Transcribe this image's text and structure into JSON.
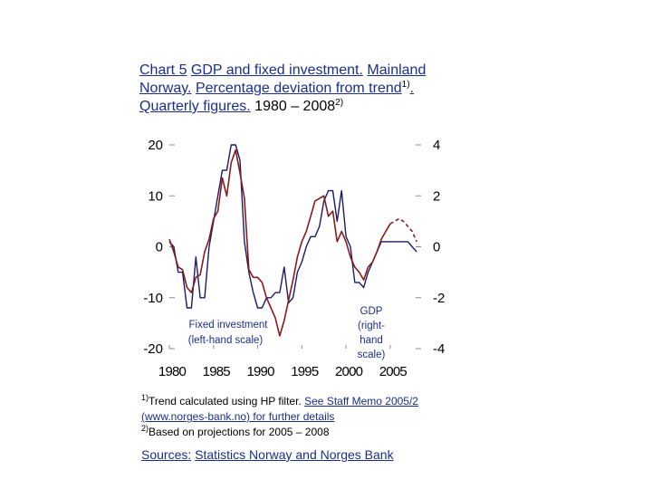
{
  "title": {
    "chart_no": "Chart 5",
    "part1": "GDP and fixed investment.",
    "part2": "Mainland Norway.",
    "part3": "Percentage deviation from trend",
    "sup1": "1)",
    "sep1": ".",
    "part4": "Quarterly figures.",
    "period": "1980 – 2008",
    "sup2": "2)"
  },
  "footnotes": {
    "f1_mark": "1)",
    "f1_text": "Trend calculated using HP filter.",
    "f1_link": "See Staff Memo 2005/2 (www.norges-bank.no) for further details",
    "f2_mark": "2)",
    "f2_text": "Based on projections for 2005 – 2008"
  },
  "sources": {
    "label": "Sources:",
    "text": "Statistics Norway and Norges Bank"
  },
  "colors": {
    "investment": "#1a1a6e",
    "gdp": "#8b1a1a",
    "axis": "#000000",
    "annotation": "#1a2f8c"
  },
  "chart_data": {
    "type": "line",
    "x_ticks": [
      "1980",
      "1985",
      "1990",
      "1995",
      "2000",
      "2005"
    ],
    "xlim": [
      1980,
      2008.5
    ],
    "ylim_left": [
      -20,
      20
    ],
    "ylim_right": [
      -4,
      4
    ],
    "left_ticks": [
      "20",
      "10",
      "0",
      "-10",
      "-20"
    ],
    "right_ticks": [
      "4",
      "2",
      "0",
      "-2",
      "-4"
    ],
    "grid": false,
    "annotations": {
      "investment": "Fixed investment (left-hand scale)",
      "gdp_lines": [
        "GDP",
        "(right-",
        "hand",
        "scale)"
      ]
    },
    "series": [
      {
        "axis": "left",
        "points": [
          [
            1980.0,
            1
          ],
          [
            1980.5,
            0
          ],
          [
            1981.0,
            -5
          ],
          [
            1981.5,
            -5
          ],
          [
            1982.0,
            -12
          ],
          [
            1982.5,
            -12
          ],
          [
            1983.0,
            -2
          ],
          [
            1983.5,
            -10
          ],
          [
            1984.0,
            -10
          ],
          [
            1984.5,
            0
          ],
          [
            1985.0,
            5
          ],
          [
            1985.5,
            10
          ],
          [
            1986.0,
            15
          ],
          [
            1986.5,
            15
          ],
          [
            1987.0,
            20
          ],
          [
            1987.5,
            20
          ],
          [
            1988.0,
            17
          ],
          [
            1988.5,
            1
          ],
          [
            1989.0,
            -5
          ],
          [
            1989.5,
            -9
          ],
          [
            1990.0,
            -12
          ],
          [
            1990.5,
            -12
          ],
          [
            1991.0,
            -10
          ],
          [
            1991.5,
            -10
          ],
          [
            1992.0,
            -9
          ],
          [
            1992.5,
            -9
          ],
          [
            1993.0,
            -4
          ],
          [
            1993.5,
            -11
          ],
          [
            1994.0,
            -10
          ],
          [
            1994.5,
            -5
          ],
          [
            1995.0,
            -3
          ],
          [
            1995.5,
            0
          ],
          [
            1996.0,
            2
          ],
          [
            1996.5,
            2
          ],
          [
            1997.0,
            4
          ],
          [
            1997.5,
            9
          ],
          [
            1998.0,
            11
          ],
          [
            1998.5,
            11
          ],
          [
            1999.0,
            5
          ],
          [
            1999.5,
            11
          ],
          [
            2000.0,
            2
          ],
          [
            2000.5,
            0
          ],
          [
            2001.0,
            -7
          ],
          [
            2001.5,
            -7
          ],
          [
            2002.0,
            -8
          ],
          [
            2002.5,
            -5
          ],
          [
            2003.0,
            -3
          ],
          [
            2003.5,
            -1
          ],
          [
            2004.0,
            1
          ],
          [
            2004.5,
            1
          ],
          [
            2005.0,
            1
          ],
          [
            2005.5,
            1
          ],
          [
            2006.0,
            1
          ],
          [
            2006.5,
            1
          ],
          [
            2007.0,
            1
          ],
          [
            2007.5,
            0
          ],
          [
            2008.0,
            -1
          ]
        ]
      },
      {
        "axis": "right",
        "points": [
          [
            1980.0,
            0.3
          ],
          [
            1980.5,
            -0.2
          ],
          [
            1981.0,
            -0.8
          ],
          [
            1981.5,
            -0.9
          ],
          [
            1982.0,
            -1.6
          ],
          [
            1982.5,
            -1.8
          ],
          [
            1983.0,
            -1.2
          ],
          [
            1983.5,
            -1.1
          ],
          [
            1984.0,
            -0.2
          ],
          [
            1984.5,
            0.3
          ],
          [
            1985.0,
            1.1
          ],
          [
            1985.5,
            1.4
          ],
          [
            1986.0,
            2.7
          ],
          [
            1986.5,
            2.0
          ],
          [
            1987.0,
            3.3
          ],
          [
            1987.5,
            3.8
          ],
          [
            1988.0,
            2.9
          ],
          [
            1988.5,
            1.9
          ],
          [
            1989.0,
            -0.9
          ],
          [
            1989.5,
            -1.2
          ],
          [
            1990.0,
            -1.2
          ],
          [
            1990.5,
            -1.4
          ],
          [
            1991.0,
            -2.0
          ],
          [
            1991.5,
            -2.4
          ],
          [
            1992.0,
            -2.8
          ],
          [
            1992.5,
            -3.5
          ],
          [
            1993.0,
            -2.9
          ],
          [
            1993.5,
            -2.1
          ],
          [
            1994.0,
            -1.3
          ],
          [
            1994.5,
            -0.4
          ],
          [
            1995.0,
            0.2
          ],
          [
            1995.5,
            0.6
          ],
          [
            1996.0,
            1.2
          ],
          [
            1996.5,
            1.8
          ],
          [
            1997.0,
            1.9
          ],
          [
            1997.5,
            2.0
          ],
          [
            1998.0,
            1.2
          ],
          [
            1998.5,
            1.4
          ],
          [
            1999.0,
            0.2
          ],
          [
            1999.5,
            0.6
          ],
          [
            2000.0,
            0.2
          ],
          [
            2000.5,
            -0.4
          ],
          [
            2001.0,
            -0.8
          ],
          [
            2001.5,
            -1.0
          ],
          [
            2002.0,
            -1.3
          ],
          [
            2002.5,
            -0.8
          ],
          [
            2003.0,
            -0.6
          ],
          [
            2003.5,
            -0.2
          ],
          [
            2004.0,
            0.3
          ],
          [
            2004.5,
            0.6
          ],
          [
            2005.0,
            0.9
          ]
        ]
      }
    ]
  }
}
